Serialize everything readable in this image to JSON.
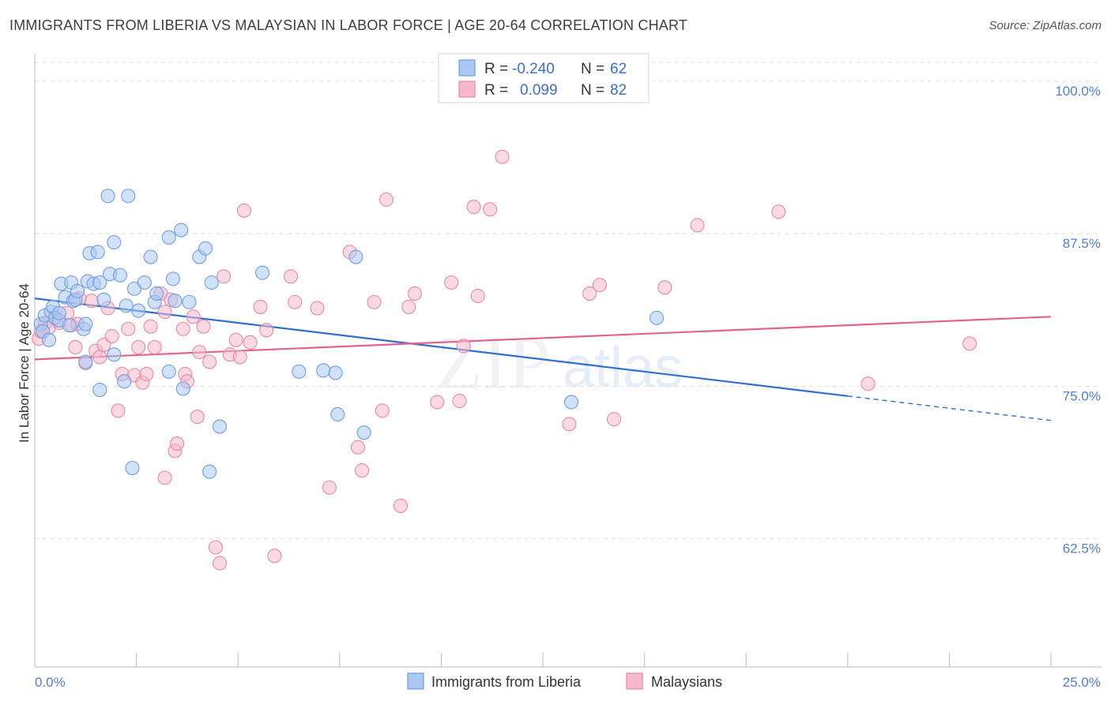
{
  "header": {
    "title": "IMMIGRANTS FROM LIBERIA VS MALAYSIAN IN LABOR FORCE | AGE 20-64 CORRELATION CHART",
    "source": "Source: ZipAtlas.com"
  },
  "colors": {
    "liberia_fill": "#a9c8f2",
    "liberia_stroke": "#6f9ee0",
    "liberia_line": "#2f6fd0",
    "malaysian_fill": "#f6b9cc",
    "malaysian_stroke": "#e68aa8",
    "malaysian_line": "#e0648f",
    "tick_label": "#4f7fce",
    "grid": "#dddddd"
  },
  "watermark": {
    "zip": "ZIP",
    "atlas": "atlas"
  },
  "legend": {
    "rows": [
      {
        "r_label": "R =",
        "r_value": "-0.240",
        "n_label": "N =",
        "n_value": "62"
      },
      {
        "r_label": "R =",
        "r_value": "0.099",
        "n_label": "N =",
        "n_value": "82"
      }
    ]
  },
  "chart_data": {
    "type": "scatter",
    "title": "IMMIGRANTS FROM LIBERIA VS MALAYSIAN IN LABOR FORCE | AGE 20-64 CORRELATION CHART",
    "xlabel": "",
    "ylabel": "In Labor Force | Age 20-64",
    "xlim": [
      0,
      25
    ],
    "ylim": [
      52,
      102
    ],
    "x_tick_labels": [
      "0.0%",
      "25.0%"
    ],
    "y_ticks": [
      62.5,
      75.0,
      87.5,
      100.0
    ],
    "y_tick_labels": [
      "62.5%",
      "75.0%",
      "87.5%",
      "100.0%"
    ],
    "grid": true,
    "legend_position": "top-center",
    "series": [
      {
        "name": "Immigrants from Liberia",
        "r": -0.24,
        "n": 62,
        "trend": {
          "x0": 0,
          "y0": 82.2,
          "x1": 25,
          "y1": 72.2,
          "solid_until_x": 20
        },
        "points": [
          [
            0.15,
            80.1
          ],
          [
            0.2,
            79.5
          ],
          [
            0.25,
            80.8
          ],
          [
            0.35,
            78.8
          ],
          [
            0.4,
            81.1
          ],
          [
            0.45,
            81.5
          ],
          [
            0.5,
            80.6
          ],
          [
            0.6,
            80.4
          ],
          [
            0.65,
            83.4
          ],
          [
            0.75,
            82.3
          ],
          [
            0.85,
            80.0
          ],
          [
            0.9,
            83.5
          ],
          [
            0.95,
            82.0
          ],
          [
            1.0,
            82.1
          ],
          [
            1.05,
            82.8
          ],
          [
            1.2,
            79.7
          ],
          [
            1.25,
            80.1
          ],
          [
            1.3,
            83.6
          ],
          [
            1.35,
            85.9
          ],
          [
            1.45,
            83.4
          ],
          [
            1.55,
            86.0
          ],
          [
            1.6,
            83.5
          ],
          [
            1.7,
            82.1
          ],
          [
            1.8,
            90.6
          ],
          [
            1.85,
            84.2
          ],
          [
            1.95,
            86.8
          ],
          [
            2.1,
            84.1
          ],
          [
            2.25,
            81.6
          ],
          [
            2.3,
            90.6
          ],
          [
            2.45,
            83.0
          ],
          [
            2.55,
            81.2
          ],
          [
            2.7,
            83.5
          ],
          [
            2.85,
            85.6
          ],
          [
            2.95,
            81.9
          ],
          [
            3.0,
            82.6
          ],
          [
            3.3,
            87.2
          ],
          [
            3.4,
            83.8
          ],
          [
            3.45,
            82.0
          ],
          [
            3.6,
            87.8
          ],
          [
            3.8,
            81.9
          ],
          [
            4.05,
            85.6
          ],
          [
            4.2,
            86.3
          ],
          [
            4.35,
            83.5
          ],
          [
            5.6,
            84.3
          ],
          [
            1.25,
            77.0
          ],
          [
            1.6,
            74.7
          ],
          [
            1.95,
            77.6
          ],
          [
            2.2,
            75.4
          ],
          [
            2.4,
            68.3
          ],
          [
            3.3,
            76.2
          ],
          [
            3.65,
            74.8
          ],
          [
            4.3,
            68.0
          ],
          [
            4.55,
            71.7
          ],
          [
            6.5,
            76.2
          ],
          [
            7.1,
            76.3
          ],
          [
            7.4,
            76.1
          ],
          [
            7.45,
            72.7
          ],
          [
            7.9,
            85.6
          ],
          [
            8.1,
            71.2
          ],
          [
            13.2,
            73.7
          ],
          [
            15.3,
            80.6
          ],
          [
            0.6,
            81.0
          ]
        ]
      },
      {
        "name": "Malaysians",
        "r": 0.099,
        "n": 82,
        "trend": {
          "x0": 0,
          "y0": 77.2,
          "x1": 25,
          "y1": 80.7
        },
        "points": [
          [
            0.1,
            78.9
          ],
          [
            0.15,
            79.5
          ],
          [
            0.25,
            80.2
          ],
          [
            0.35,
            79.8
          ],
          [
            0.5,
            80.6
          ],
          [
            0.6,
            80.2
          ],
          [
            0.8,
            81.0
          ],
          [
            0.9,
            80.0
          ],
          [
            1.0,
            78.2
          ],
          [
            1.05,
            80.1
          ],
          [
            1.1,
            82.2
          ],
          [
            1.25,
            76.9
          ],
          [
            1.4,
            82.0
          ],
          [
            1.5,
            77.9
          ],
          [
            1.6,
            77.4
          ],
          [
            1.7,
            78.4
          ],
          [
            1.8,
            81.4
          ],
          [
            1.9,
            79.1
          ],
          [
            2.05,
            73.0
          ],
          [
            2.15,
            76.0
          ],
          [
            2.3,
            79.7
          ],
          [
            2.45,
            75.9
          ],
          [
            2.55,
            78.2
          ],
          [
            2.65,
            75.3
          ],
          [
            2.75,
            76.0
          ],
          [
            2.85,
            79.9
          ],
          [
            2.95,
            78.2
          ],
          [
            3.1,
            82.6
          ],
          [
            3.2,
            81.1
          ],
          [
            3.2,
            67.5
          ],
          [
            3.35,
            82.1
          ],
          [
            3.45,
            69.7
          ],
          [
            3.5,
            70.3
          ],
          [
            3.65,
            79.7
          ],
          [
            3.7,
            76.0
          ],
          [
            3.75,
            75.4
          ],
          [
            3.9,
            80.7
          ],
          [
            4.0,
            72.5
          ],
          [
            4.05,
            77.8
          ],
          [
            4.15,
            79.9
          ],
          [
            4.3,
            77.0
          ],
          [
            4.45,
            61.8
          ],
          [
            4.55,
            60.5
          ],
          [
            4.65,
            84.0
          ],
          [
            4.8,
            77.6
          ],
          [
            4.95,
            78.8
          ],
          [
            5.05,
            77.4
          ],
          [
            5.15,
            89.4
          ],
          [
            5.3,
            78.6
          ],
          [
            5.55,
            81.5
          ],
          [
            5.7,
            79.6
          ],
          [
            5.9,
            61.1
          ],
          [
            6.3,
            84.0
          ],
          [
            6.4,
            81.9
          ],
          [
            6.95,
            81.4
          ],
          [
            7.25,
            66.7
          ],
          [
            7.75,
            86.0
          ],
          [
            7.95,
            70.0
          ],
          [
            8.05,
            68.1
          ],
          [
            8.35,
            81.9
          ],
          [
            8.55,
            73.0
          ],
          [
            8.65,
            90.3
          ],
          [
            9.0,
            65.2
          ],
          [
            9.2,
            81.5
          ],
          [
            9.35,
            82.6
          ],
          [
            9.9,
            73.7
          ],
          [
            10.25,
            83.5
          ],
          [
            10.45,
            73.8
          ],
          [
            10.55,
            78.3
          ],
          [
            10.8,
            89.7
          ],
          [
            10.9,
            82.4
          ],
          [
            11.2,
            89.5
          ],
          [
            11.5,
            93.8
          ],
          [
            13.15,
            71.9
          ],
          [
            13.65,
            82.6
          ],
          [
            13.9,
            83.3
          ],
          [
            14.25,
            72.3
          ],
          [
            15.5,
            83.1
          ],
          [
            16.3,
            88.2
          ],
          [
            18.3,
            89.3
          ],
          [
            20.5,
            75.2
          ],
          [
            23.0,
            78.5
          ]
        ]
      }
    ]
  }
}
